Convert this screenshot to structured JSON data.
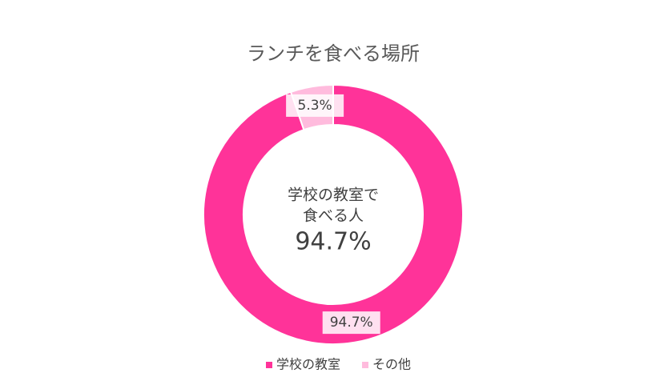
{
  "chart_data": {
    "type": "donut",
    "title": "ランチを食べる場所",
    "categories": [
      "学校の教室",
      "その他"
    ],
    "values": [
      94.7,
      5.3
    ],
    "value_labels": [
      "94.7%",
      "5.3%"
    ],
    "colors": [
      "#ff3399",
      "#ffbbdd"
    ],
    "center_text": [
      "学校の教室で",
      "食べる人",
      "94.7%"
    ],
    "legend": "bottom"
  }
}
